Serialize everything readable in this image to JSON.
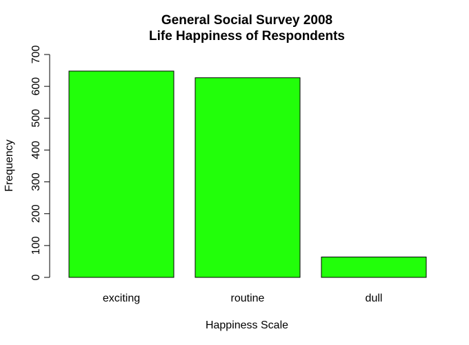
{
  "chart_data": {
    "type": "bar",
    "title": "General Social Survey 2008",
    "subtitle": "Life Happiness of Respondents",
    "xlabel": "Happiness Scale",
    "ylabel": "Frequency",
    "categories": [
      "exciting",
      "routine",
      "dull"
    ],
    "values": [
      648,
      627,
      64
    ],
    "ylim": [
      0,
      700
    ],
    "yticks": [
      0,
      100,
      200,
      300,
      400,
      500,
      600,
      700
    ],
    "bar_color": "#22ff0a",
    "grid": false,
    "legend": "none"
  }
}
